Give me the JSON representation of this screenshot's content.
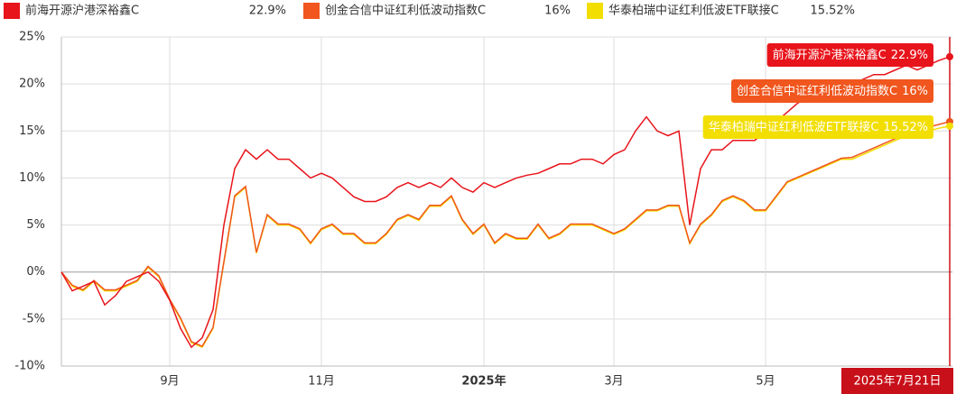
{
  "chart_data": {
    "type": "line",
    "categories": [
      null,
      null,
      null,
      null,
      null,
      null,
      null,
      null,
      null,
      null,
      "9月",
      null,
      null,
      null,
      null,
      null,
      null,
      null,
      null,
      null,
      null,
      null,
      null,
      null,
      "11月",
      null,
      null,
      null,
      null,
      null,
      null,
      null,
      null,
      null,
      null,
      null,
      null,
      null,
      null,
      "2025年",
      null,
      null,
      null,
      null,
      null,
      null,
      null,
      null,
      null,
      null,
      null,
      "3月",
      null,
      null,
      null,
      null,
      null,
      null,
      null,
      null,
      null,
      null,
      null,
      null,
      null,
      "5月",
      null,
      null,
      null,
      null,
      null,
      null,
      null,
      null,
      null,
      null,
      null,
      null,
      null,
      null,
      null,
      null,
      "2025年7月21日"
    ],
    "series": [
      {
        "name": "前海开源沪港深裕鑫C",
        "color": "#e8141b",
        "last_label": "22.9%",
        "values": [
          0,
          -2,
          -1.5,
          -1,
          -3.5,
          -2.5,
          -1,
          -0.5,
          0,
          -1,
          -3,
          -6,
          -8,
          -7,
          -4,
          5,
          11,
          13,
          12,
          13,
          12,
          12,
          11,
          10,
          10.5,
          10,
          9,
          8,
          7.5,
          7.5,
          8,
          9,
          9.5,
          9,
          9.5,
          9,
          10,
          9,
          8.5,
          9.5,
          9,
          9.5,
          10,
          10.3,
          10.5,
          11,
          11.5,
          11.5,
          12,
          12,
          11.5,
          12.5,
          13,
          15,
          16.5,
          15,
          14.5,
          15,
          5,
          11,
          13,
          13,
          14,
          14,
          14,
          15,
          16,
          17,
          18,
          18.5,
          19,
          19.5,
          20,
          20,
          20.5,
          21,
          21,
          21.5,
          22,
          21.5,
          22,
          22.5,
          22.9
        ]
      },
      {
        "name": "创金合信中证红利低波动指数C",
        "color": "#f0561d",
        "last_label": "16%",
        "values": [
          0,
          -1.4,
          -1.9,
          -0.9,
          -1.9,
          -1.9,
          -1.4,
          -0.9,
          0.6,
          -0.4,
          -2.9,
          -4.9,
          -7.4,
          -7.9,
          -5.9,
          1.1,
          8.1,
          9.1,
          2.1,
          6.1,
          5.1,
          5.1,
          4.6,
          3.1,
          4.6,
          5.1,
          4.1,
          4.1,
          3.1,
          3.1,
          4.1,
          5.6,
          6.1,
          5.6,
          7.1,
          7.1,
          8.1,
          5.6,
          4.1,
          5.1,
          3.1,
          4.1,
          3.6,
          3.6,
          5.1,
          3.6,
          4.1,
          5.1,
          5.1,
          5.1,
          4.6,
          4.1,
          4.6,
          5.6,
          6.6,
          6.6,
          7.1,
          7.1,
          3.1,
          5.1,
          6.1,
          7.6,
          8.1,
          7.6,
          6.6,
          6.6,
          8.1,
          9.6,
          10.1,
          10.6,
          11.1,
          11.6,
          12.1,
          12.2,
          12.7,
          13.2,
          13.7,
          14.2,
          14.8,
          14.9,
          15.4,
          15.7,
          16
        ]
      },
      {
        "name": "华泰柏瑞中证红利低波ETF联接C",
        "color": "#f2de00",
        "last_label": "15.52%",
        "values": [
          0,
          -1.5,
          -2,
          -1,
          -2,
          -2,
          -1.5,
          -1,
          0.5,
          -0.5,
          -3,
          -5,
          -7.5,
          -8,
          -6,
          1,
          8,
          9,
          2,
          6,
          5,
          5,
          4.5,
          3,
          4.5,
          5,
          4,
          4,
          3,
          3,
          4,
          5.5,
          6,
          5.5,
          7,
          7,
          8,
          5.5,
          4,
          5,
          3,
          4,
          3.5,
          3.5,
          5,
          3.5,
          4,
          5,
          5,
          5,
          4.5,
          4,
          4.5,
          5.5,
          6.5,
          6.5,
          7,
          7,
          3,
          5,
          6,
          7.5,
          8,
          7.5,
          6.5,
          6.5,
          8,
          9.5,
          10,
          10.5,
          11,
          11.5,
          12,
          12,
          12.5,
          13,
          13.5,
          14,
          14.5,
          14.5,
          15,
          15.3,
          15.52
        ]
      }
    ],
    "ylim": [
      -10,
      25
    ],
    "yticks": [
      {
        "value": -10,
        "label": "-10%"
      },
      {
        "value": -5,
        "label": "-5%"
      },
      {
        "value": 0,
        "label": "0%"
      },
      {
        "value": 5,
        "label": "5%"
      },
      {
        "value": 10,
        "label": "10%"
      },
      {
        "value": 15,
        "label": "15%"
      },
      {
        "value": 20,
        "label": "20%"
      },
      {
        "value": 25,
        "label": "25%"
      }
    ],
    "grid": true
  }
}
